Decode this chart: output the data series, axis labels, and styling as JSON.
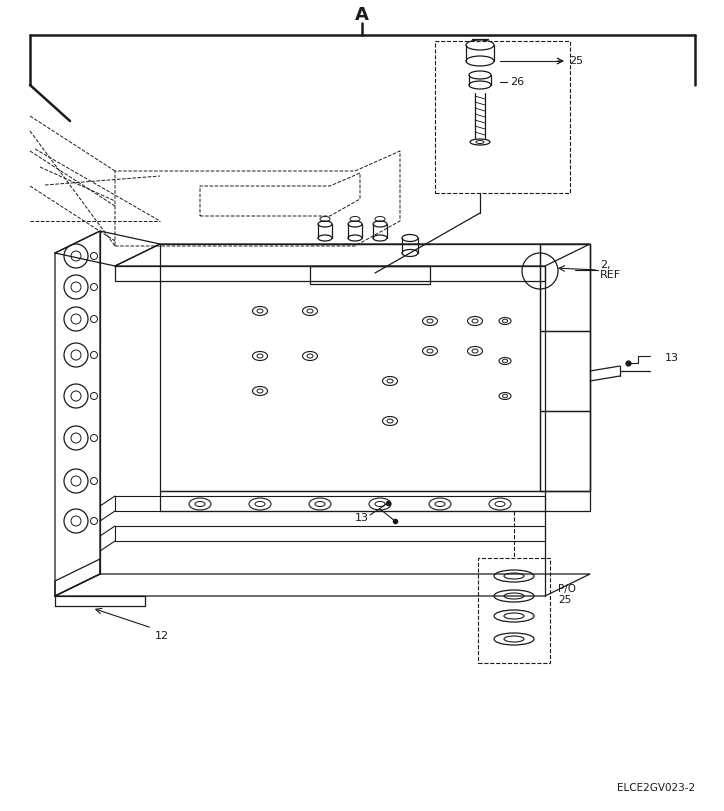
{
  "bg_color": "#ffffff",
  "lc": "#1a1a1a",
  "figure_id": "ELCE2GV023-2",
  "title": "A",
  "label_25": "25",
  "label_26": "26",
  "label_2ref": "2,\nREF",
  "label_13": "13",
  "label_12": "12",
  "label_po25": "P/O\n25"
}
